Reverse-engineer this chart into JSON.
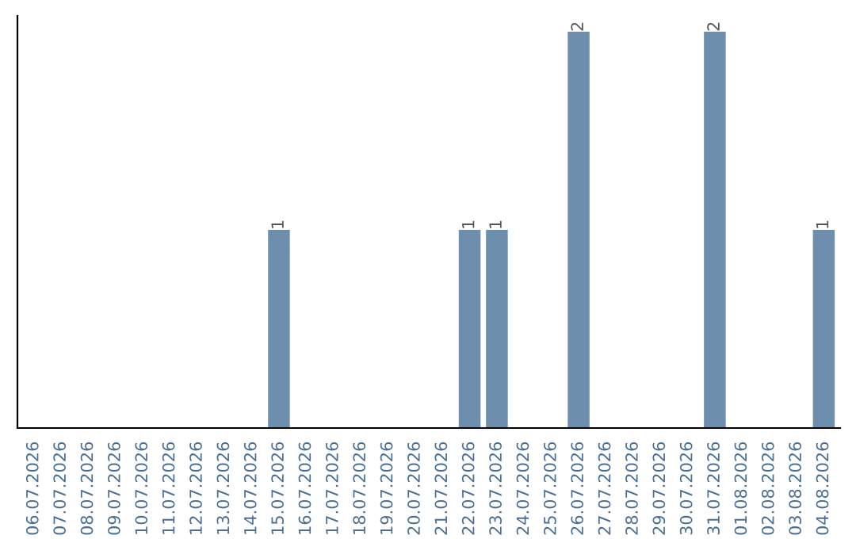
{
  "chart_data": {
    "type": "bar",
    "categories": [
      "06.07.2026",
      "07.07.2026",
      "08.07.2026",
      "09.07.2026",
      "10.07.2026",
      "11.07.2026",
      "12.07.2026",
      "13.07.2026",
      "14.07.2026",
      "15.07.2026",
      "16.07.2026",
      "17.07.2026",
      "18.07.2026",
      "19.07.2026",
      "20.07.2026",
      "21.07.2026",
      "22.07.2026",
      "23.07.2026",
      "24.07.2026",
      "25.07.2026",
      "26.07.2026",
      "27.07.2026",
      "28.07.2026",
      "29.07.2026",
      "30.07.2026",
      "31.07.2026",
      "01.08.2026",
      "02.08.2026",
      "03.08.2026",
      "04.08.2026"
    ],
    "values": [
      0,
      0,
      0,
      0,
      0,
      0,
      0,
      0,
      0,
      1,
      0,
      0,
      0,
      0,
      0,
      0,
      1,
      1,
      0,
      0,
      2,
      0,
      0,
      0,
      0,
      2,
      0,
      0,
      0,
      1
    ],
    "value_labels": [
      null,
      null,
      null,
      null,
      null,
      null,
      null,
      null,
      null,
      "1",
      null,
      null,
      null,
      null,
      null,
      null,
      "1",
      "1",
      null,
      null,
      "2",
      null,
      null,
      null,
      null,
      "2",
      null,
      null,
      null,
      "1"
    ],
    "color": "#6d8eac",
    "grid": false,
    "legend": false
  }
}
